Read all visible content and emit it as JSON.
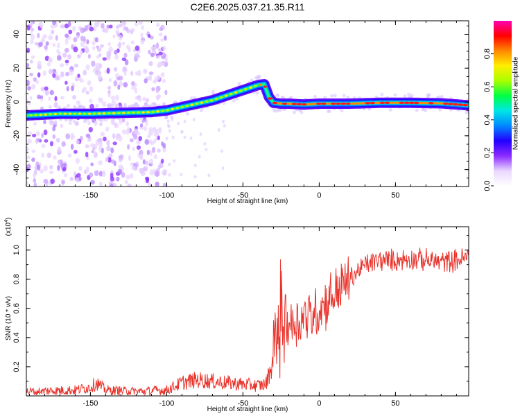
{
  "title": "C2E6.2025.037.21.35.R11",
  "chart_data": [
    {
      "type": "heatmap",
      "xlabel": "Height of straight line (km)",
      "ylabel": "Frequency (Hz)",
      "xlim": [
        -192,
        98
      ],
      "ylim": [
        -50,
        48
      ],
      "x_ticks": [
        -150,
        -100,
        -50,
        0,
        50
      ],
      "y_ticks": [
        -40,
        -20,
        0,
        20,
        40
      ],
      "ridge": {
        "x": [
          -192,
          -170,
          -150,
          -130,
          -110,
          -100,
          -90,
          -80,
          -70,
          -60,
          -50,
          -40,
          -36,
          -33,
          -30,
          -25,
          -20,
          -10,
          0,
          20,
          40,
          60,
          80,
          98
        ],
        "frequency": [
          -8,
          -7,
          -7,
          -6.5,
          -6,
          -5,
          -3,
          -1,
          1,
          4,
          7,
          10,
          10.5,
          3,
          -0.5,
          -1,
          -1,
          -1.5,
          -1,
          -1,
          -0.5,
          -0.5,
          -0.8,
          -2
        ]
      },
      "scatter_region_x": [
        -192,
        -100
      ]
    },
    {
      "type": "colorbar",
      "label": "Normalized spectral amplitude",
      "range": [
        0,
        1
      ],
      "ticks": [
        "0.0",
        "0.2",
        "0.4",
        "0.6",
        "0.8"
      ],
      "colors": [
        "#ffffff",
        "#e9d6ff",
        "#8b2bff",
        "#2200ff",
        "#0088ff",
        "#00e6e6",
        "#00ff44",
        "#aaff00",
        "#ffee00",
        "#ff8800",
        "#ff0000",
        "#ff00b4"
      ]
    },
    {
      "type": "line",
      "xlabel": "Height of straight line (km)",
      "ylabel": "SNR (10 * v/v)",
      "y_multiplier": "(x10",
      "y_multiplier_exp": "4",
      "y_multiplier_close": ")",
      "xlim": [
        -192,
        98
      ],
      "ylim": [
        0,
        1.16
      ],
      "x_ticks": [
        -150,
        -100,
        -50,
        0,
        50
      ],
      "y_ticks": [
        "0.2",
        "0.4",
        "0.6",
        "0.8",
        "1.0"
      ],
      "y_tick_values": [
        0.2,
        0.4,
        0.6,
        0.8,
        1.0
      ],
      "series_color": "#e8322a",
      "trend": {
        "x": [
          -192,
          -160,
          -150,
          -146,
          -140,
          -120,
          -100,
          -90,
          -80,
          -70,
          -60,
          -50,
          -40,
          -35,
          -30,
          -27,
          -25,
          -20,
          -15,
          -10,
          -5,
          0,
          10,
          20,
          30,
          40,
          50,
          60,
          70,
          80,
          90,
          98
        ],
        "y": [
          0.03,
          0.04,
          0.06,
          0.09,
          0.04,
          0.03,
          0.04,
          0.09,
          0.11,
          0.1,
          0.09,
          0.08,
          0.07,
          0.08,
          0.25,
          0.45,
          0.55,
          0.5,
          0.5,
          0.55,
          0.55,
          0.6,
          0.7,
          0.8,
          0.9,
          0.93,
          0.93,
          0.94,
          0.93,
          0.92,
          0.93,
          0.95
        ]
      }
    }
  ]
}
